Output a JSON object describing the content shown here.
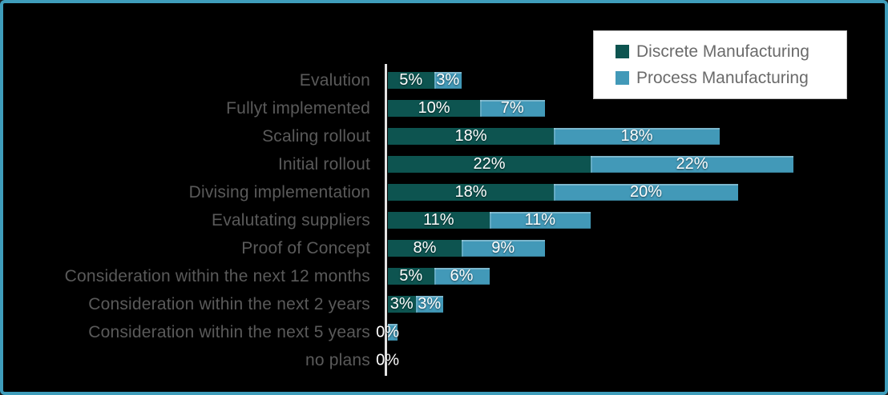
{
  "frame": {
    "border_color": "#3f9dbb",
    "background_color": "#000000"
  },
  "legend": {
    "items": [
      {
        "label": "Discrete Manufacturing",
        "color": "#0d5450"
      },
      {
        "label": "Process Manufacturing",
        "color": "#4299b8"
      }
    ]
  },
  "chart_data": {
    "type": "bar",
    "orientation": "horizontal",
    "stacked": true,
    "unit": "%",
    "title": "",
    "xlabel": "",
    "ylabel": "",
    "grid": false,
    "legend_position": "top-right",
    "axis_baseline_color": "#e3e3e3",
    "category_label_color": "#5a5a5a",
    "value_label_color": "#ffffff",
    "categories": [
      "Evalution",
      "Fullyt implemented",
      "Scaling rollout",
      "Initial rollout",
      "Divising implementation",
      "Evalutating suppliers",
      "Proof of Concept",
      "Consideration within the next 12 months",
      "Consideration within the next 2 years",
      "Consideration within the next 5 years",
      "no plans"
    ],
    "series": [
      {
        "name": "Discrete Manufacturing",
        "color": "#0d5450",
        "values": [
          5,
          10,
          18,
          22,
          18,
          11,
          8,
          5,
          3,
          0,
          0
        ],
        "labels": [
          "5%",
          "10%",
          "18%",
          "22%",
          "18%",
          "11%",
          "8%",
          "5%",
          "3%",
          "0%",
          "0%"
        ]
      },
      {
        "name": "Process Manufacturing",
        "color": "#4299b8",
        "values": [
          3,
          7,
          18,
          22,
          20,
          11,
          9,
          6,
          3,
          1,
          0
        ],
        "labels": [
          "3%",
          "7%",
          "18%",
          "22%",
          "20%",
          "11%",
          "9%",
          "6%",
          "3%",
          "",
          ""
        ]
      }
    ],
    "xlim": [
      0,
      50
    ]
  }
}
